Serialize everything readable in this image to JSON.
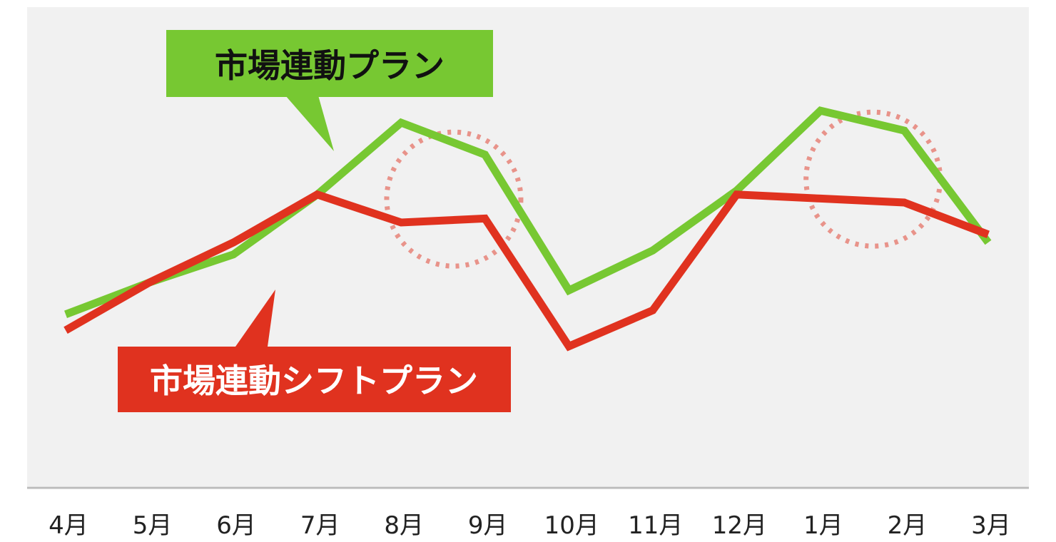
{
  "chart_data": {
    "type": "line",
    "title": "",
    "xlabel": "",
    "ylabel": "",
    "categories": [
      "4月",
      "5月",
      "6月",
      "7月",
      "8月",
      "9月",
      "10月",
      "11月",
      "12月",
      "1月",
      "2月",
      "3月"
    ],
    "ylim": [
      0,
      100
    ],
    "grid": false,
    "legend": "callouts",
    "series": [
      {
        "name": "市場連動プラン",
        "color": "#77c832",
        "values": [
          32,
          40,
          47,
          62,
          80,
          72,
          38,
          48,
          63,
          83,
          78,
          50
        ]
      },
      {
        "name": "市場連動シフトプラン",
        "color": "#e0321f",
        "values": [
          28,
          40,
          50,
          62,
          55,
          56,
          24,
          33,
          62,
          61,
          60,
          52
        ]
      }
    ],
    "highlights": [
      {
        "x_between": [
          "8月",
          "9月"
        ],
        "style": "dotted-circle",
        "color": "#e8938a"
      },
      {
        "x_between": [
          "1月",
          "2月"
        ],
        "style": "dotted-circle",
        "color": "#e8938a"
      }
    ],
    "background_color": "#f1f1f1",
    "axis_color": "#bbbbbb"
  }
}
